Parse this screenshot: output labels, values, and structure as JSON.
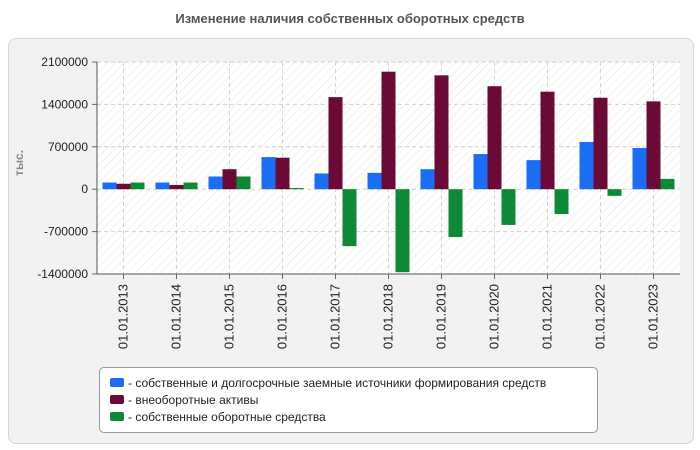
{
  "chart_data": {
    "type": "bar",
    "title": "Изменение наличия собственных оборотных средств",
    "ylabel": "тыс.",
    "xlabel": "",
    "ylim": [
      -1400000,
      2100000
    ],
    "yticks": [
      2100000,
      1400000,
      700000,
      0,
      -700000,
      -1400000
    ],
    "grid": true,
    "legend_position": "bottom",
    "categories": [
      "01.01.2013",
      "01.01.2014",
      "01.01.2015",
      "01.01.2016",
      "01.01.2017",
      "01.01.2018",
      "01.01.2019",
      "01.01.2020",
      "01.01.2021",
      "01.01.2022",
      "01.01.2023"
    ],
    "series": [
      {
        "name": "собственные и долгосрочные заемные источники формирования средств",
        "color": "#1a6ef5",
        "values": [
          110000,
          110000,
          210000,
          530000,
          260000,
          270000,
          330000,
          580000,
          480000,
          780000,
          680000
        ]
      },
      {
        "name": "внеоборотные активы",
        "color": "#6b0a36",
        "values": [
          90000,
          70000,
          330000,
          520000,
          1520000,
          1940000,
          1880000,
          1700000,
          1610000,
          1510000,
          1450000
        ]
      },
      {
        "name": "собственные оборотные средства",
        "color": "#0e8a36",
        "values": [
          110000,
          110000,
          210000,
          20000,
          -940000,
          -1370000,
          -790000,
          -590000,
          -410000,
          -110000,
          170000
        ]
      }
    ]
  }
}
